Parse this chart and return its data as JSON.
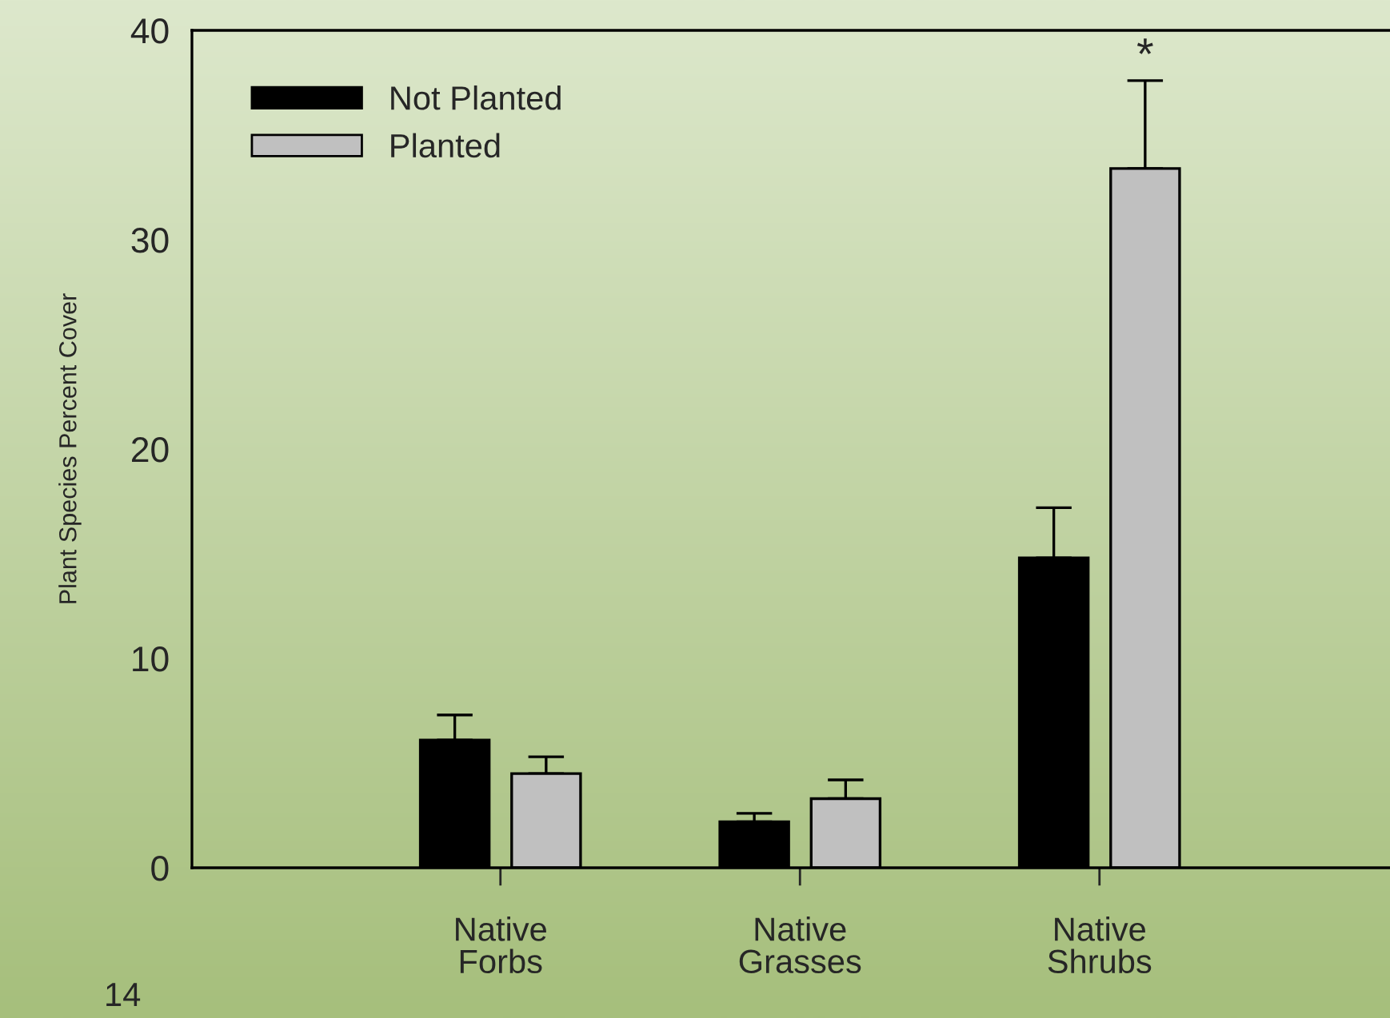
{
  "chart_data": {
    "type": "bar",
    "ylabel": "Plant Species Percent Cover",
    "categories": [
      "Native\nForbs",
      "Native\nGrasses",
      "Native\nShrubs"
    ],
    "series": [
      {
        "name": "Not Planted",
        "color": "#000000",
        "values": [
          6.1,
          2.2,
          14.8
        ],
        "errors": [
          1.2,
          0.4,
          2.4
        ]
      },
      {
        "name": "Planted",
        "color": "#c0c0c0",
        "values": [
          4.5,
          3.3,
          33.4
        ],
        "errors": [
          0.8,
          0.9,
          4.2
        ]
      }
    ],
    "ylim": [
      0,
      40
    ],
    "yticks": [
      0,
      10,
      20,
      30,
      40
    ],
    "grid": false,
    "legend": "top left",
    "annotations": [
      "*",
      "14"
    ]
  }
}
